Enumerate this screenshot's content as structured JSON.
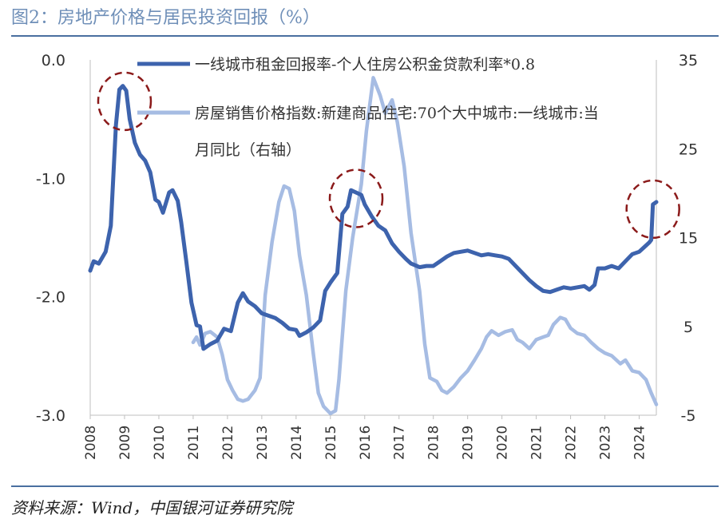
{
  "header": {
    "title": "图2：房地产价格与居民投资回报（%）"
  },
  "footer": {
    "source": "资料来源：Wind，中国银河证券研究院"
  },
  "chart_data": {
    "type": "line",
    "left_axis": {
      "ticks": [
        "0.0",
        "-1.0",
        "-2.0",
        "-3.0"
      ],
      "range": [
        -3.0,
        0.0
      ]
    },
    "right_axis": {
      "ticks": [
        "35",
        "25",
        "15",
        "5",
        "-5"
      ],
      "range": [
        -5,
        35
      ]
    },
    "x_axis": {
      "ticks": [
        "2008",
        "2009",
        "2010",
        "2011",
        "2012",
        "2013",
        "2014",
        "2015",
        "2016",
        "2017",
        "2018",
        "2019",
        "2020",
        "2021",
        "2022",
        "2023",
        "2024"
      ],
      "range": [
        2008,
        2024.5
      ]
    },
    "grid": false,
    "legend": "top",
    "series": [
      {
        "name": "一线城市租金回报率-个人住房公积金贷款利率*0.8",
        "axis": "left",
        "color": "#3d63ad",
        "points": [
          [
            2008.0,
            -1.78
          ],
          [
            2008.1,
            -1.7
          ],
          [
            2008.25,
            -1.72
          ],
          [
            2008.45,
            -1.62
          ],
          [
            2008.6,
            -1.4
          ],
          [
            2008.75,
            -0.55
          ],
          [
            2008.85,
            -0.25
          ],
          [
            2008.95,
            -0.22
          ],
          [
            2009.05,
            -0.26
          ],
          [
            2009.15,
            -0.5
          ],
          [
            2009.3,
            -0.7
          ],
          [
            2009.45,
            -0.8
          ],
          [
            2009.6,
            -0.85
          ],
          [
            2009.75,
            -0.95
          ],
          [
            2009.9,
            -1.18
          ],
          [
            2010.0,
            -1.2
          ],
          [
            2010.12,
            -1.29
          ],
          [
            2010.3,
            -1.12
          ],
          [
            2010.4,
            -1.1
          ],
          [
            2010.55,
            -1.19
          ],
          [
            2010.65,
            -1.37
          ],
          [
            2010.8,
            -1.7
          ],
          [
            2010.95,
            -2.05
          ],
          [
            2011.1,
            -2.24
          ],
          [
            2011.2,
            -2.25
          ],
          [
            2011.3,
            -2.44
          ],
          [
            2011.5,
            -2.4
          ],
          [
            2011.7,
            -2.37
          ],
          [
            2011.9,
            -2.27
          ],
          [
            2012.1,
            -2.29
          ],
          [
            2012.3,
            -2.05
          ],
          [
            2012.45,
            -1.97
          ],
          [
            2012.6,
            -2.04
          ],
          [
            2012.8,
            -2.08
          ],
          [
            2013.0,
            -2.14
          ],
          [
            2013.2,
            -2.16
          ],
          [
            2013.4,
            -2.18
          ],
          [
            2013.6,
            -2.22
          ],
          [
            2013.8,
            -2.27
          ],
          [
            2014.0,
            -2.28
          ],
          [
            2014.1,
            -2.33
          ],
          [
            2014.3,
            -2.3
          ],
          [
            2014.5,
            -2.26
          ],
          [
            2014.7,
            -2.2
          ],
          [
            2014.85,
            -1.95
          ],
          [
            2015.0,
            -1.88
          ],
          [
            2015.2,
            -1.8
          ],
          [
            2015.35,
            -1.3
          ],
          [
            2015.5,
            -1.24
          ],
          [
            2015.6,
            -1.1
          ],
          [
            2015.75,
            -1.12
          ],
          [
            2015.9,
            -1.14
          ],
          [
            2016.0,
            -1.22
          ],
          [
            2016.2,
            -1.32
          ],
          [
            2016.4,
            -1.4
          ],
          [
            2016.6,
            -1.44
          ],
          [
            2016.8,
            -1.55
          ],
          [
            2017.0,
            -1.62
          ],
          [
            2017.2,
            -1.68
          ],
          [
            2017.35,
            -1.72
          ],
          [
            2017.6,
            -1.75
          ],
          [
            2017.8,
            -1.74
          ],
          [
            2018.0,
            -1.74
          ],
          [
            2018.2,
            -1.7
          ],
          [
            2018.4,
            -1.66
          ],
          [
            2018.6,
            -1.63
          ],
          [
            2018.8,
            -1.62
          ],
          [
            2019.0,
            -1.61
          ],
          [
            2019.2,
            -1.63
          ],
          [
            2019.4,
            -1.65
          ],
          [
            2019.6,
            -1.64
          ],
          [
            2019.8,
            -1.65
          ],
          [
            2020.0,
            -1.66
          ],
          [
            2020.2,
            -1.68
          ],
          [
            2020.4,
            -1.74
          ],
          [
            2020.6,
            -1.8
          ],
          [
            2020.8,
            -1.86
          ],
          [
            2021.0,
            -1.91
          ],
          [
            2021.2,
            -1.95
          ],
          [
            2021.4,
            -1.96
          ],
          [
            2021.6,
            -1.94
          ],
          [
            2021.8,
            -1.92
          ],
          [
            2022.0,
            -1.93
          ],
          [
            2022.2,
            -1.92
          ],
          [
            2022.4,
            -1.91
          ],
          [
            2022.55,
            -1.94
          ],
          [
            2022.7,
            -1.9
          ],
          [
            2022.8,
            -1.76
          ],
          [
            2023.0,
            -1.76
          ],
          [
            2023.2,
            -1.74
          ],
          [
            2023.4,
            -1.76
          ],
          [
            2023.6,
            -1.7
          ],
          [
            2023.8,
            -1.64
          ],
          [
            2024.0,
            -1.62
          ],
          [
            2024.15,
            -1.58
          ],
          [
            2024.3,
            -1.54
          ],
          [
            2024.35,
            -1.52
          ],
          [
            2024.4,
            -1.22
          ],
          [
            2024.5,
            -1.2
          ]
        ]
      },
      {
        "name": "房屋销售价格指数:新建商品住宅:70个大中城市:一线城市:当月同比（右轴）",
        "axis": "right",
        "color": "#a6bce3",
        "points": [
          [
            2011.0,
            3.2
          ],
          [
            2011.1,
            3.8
          ],
          [
            2011.2,
            2.9
          ],
          [
            2011.35,
            4.2
          ],
          [
            2011.5,
            4.4
          ],
          [
            2011.7,
            3.8
          ],
          [
            2011.85,
            1.8
          ],
          [
            2012.0,
            -1.0
          ],
          [
            2012.15,
            -2.2
          ],
          [
            2012.3,
            -3.2
          ],
          [
            2012.45,
            -3.4
          ],
          [
            2012.6,
            -3.2
          ],
          [
            2012.8,
            -2.2
          ],
          [
            2012.95,
            -0.8
          ],
          [
            2013.1,
            8.5
          ],
          [
            2013.3,
            14.5
          ],
          [
            2013.5,
            19.0
          ],
          [
            2013.65,
            20.8
          ],
          [
            2013.8,
            20.5
          ],
          [
            2013.95,
            18.0
          ],
          [
            2014.1,
            13.0
          ],
          [
            2014.3,
            8.5
          ],
          [
            2014.5,
            2.0
          ],
          [
            2014.65,
            -2.5
          ],
          [
            2014.8,
            -4.0
          ],
          [
            2015.0,
            -4.8
          ],
          [
            2015.15,
            -4.5
          ],
          [
            2015.25,
            -1.0
          ],
          [
            2015.45,
            9.0
          ],
          [
            2015.65,
            15.0
          ],
          [
            2015.9,
            21.0
          ],
          [
            2016.05,
            27.0
          ],
          [
            2016.25,
            33.0
          ],
          [
            2016.45,
            31.0
          ],
          [
            2016.6,
            29.0
          ],
          [
            2016.8,
            30.5
          ],
          [
            2016.95,
            28.0
          ],
          [
            2017.15,
            23.0
          ],
          [
            2017.35,
            15.5
          ],
          [
            2017.6,
            9.0
          ],
          [
            2017.75,
            3.0
          ],
          [
            2017.9,
            -0.8
          ],
          [
            2018.1,
            -1.2
          ],
          [
            2018.25,
            -2.2
          ],
          [
            2018.4,
            -2.5
          ],
          [
            2018.6,
            -1.8
          ],
          [
            2018.8,
            -0.8
          ],
          [
            2019.0,
            0.0
          ],
          [
            2019.2,
            1.2
          ],
          [
            2019.4,
            2.5
          ],
          [
            2019.55,
            3.8
          ],
          [
            2019.7,
            4.5
          ],
          [
            2019.9,
            4.0
          ],
          [
            2020.1,
            4.4
          ],
          [
            2020.3,
            4.6
          ],
          [
            2020.45,
            3.5
          ],
          [
            2020.6,
            3.2
          ],
          [
            2020.8,
            2.5
          ],
          [
            2021.0,
            3.5
          ],
          [
            2021.2,
            3.8
          ],
          [
            2021.35,
            4.0
          ],
          [
            2021.5,
            5.2
          ],
          [
            2021.7,
            6.0
          ],
          [
            2021.85,
            5.8
          ],
          [
            2022.0,
            4.8
          ],
          [
            2022.2,
            4.2
          ],
          [
            2022.4,
            4.0
          ],
          [
            2022.6,
            3.2
          ],
          [
            2022.8,
            2.5
          ],
          [
            2023.0,
            2.0
          ],
          [
            2023.2,
            1.7
          ],
          [
            2023.45,
            0.8
          ],
          [
            2023.6,
            1.2
          ],
          [
            2023.8,
            0.0
          ],
          [
            2024.0,
            -0.2
          ],
          [
            2024.2,
            -1.0
          ],
          [
            2024.35,
            -2.5
          ],
          [
            2024.5,
            -3.8
          ]
        ]
      }
    ],
    "annotations": [
      {
        "type": "dashed-circle",
        "color": "#8b1a1a",
        "x": 2009.0,
        "y": -0.35
      },
      {
        "type": "dashed-circle",
        "color": "#8b1a1a",
        "x": 2015.75,
        "y": -1.17
      },
      {
        "type": "dashed-circle",
        "color": "#8b1a1a",
        "x": 2024.4,
        "y": -1.26
      }
    ]
  }
}
